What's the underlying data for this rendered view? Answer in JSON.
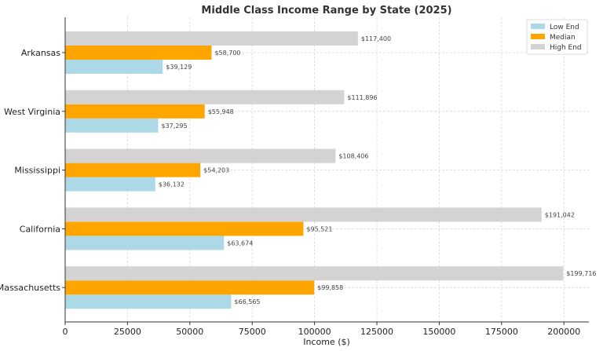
{
  "chart_data": {
    "type": "bar",
    "orientation": "horizontal",
    "title": "Middle Class Income Range by State (2025)",
    "xlabel": "Income ($)",
    "ylabel": "",
    "xlim": [
      0,
      210000
    ],
    "xticks": [
      "0",
      "25000",
      "50000",
      "75000",
      "100000",
      "125000",
      "150000",
      "175000",
      "200000"
    ],
    "grid": true,
    "legend_position": "top-right",
    "categories": [
      "Arkansas",
      "West Virginia",
      "Mississippi",
      "California",
      "Massachusetts"
    ],
    "series": [
      {
        "name": "Low End",
        "color": "#add8e6",
        "values": [
          39129,
          37295,
          36132,
          63674,
          66565
        ],
        "labels": [
          "$39,129",
          "$37,295",
          "$36,132",
          "$63,674",
          "$66,565"
        ]
      },
      {
        "name": "Median",
        "color": "#ffa500",
        "values": [
          58700,
          55948,
          54203,
          95521,
          99858
        ],
        "labels": [
          "$58,700",
          "$55,948",
          "$54,203",
          "$95,521",
          "$99,858"
        ]
      },
      {
        "name": "High End",
        "color": "#d3d3d3",
        "values": [
          117400,
          111896,
          108406,
          191042,
          199716
        ],
        "labels": [
          "$117,400",
          "$111,896",
          "$108,406",
          "$191,042",
          "$199,716"
        ]
      }
    ]
  }
}
